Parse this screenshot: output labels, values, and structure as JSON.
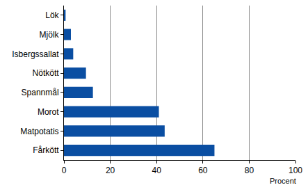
{
  "chart_data": {
    "type": "bar",
    "orientation": "horizontal",
    "categories": [
      "Lök",
      "Mjölk",
      "Isbergssallat",
      "Nötkött",
      "Spannmål",
      "Morot",
      "Matpotatis",
      "Fårkött"
    ],
    "values": [
      0.7,
      3,
      4,
      9.5,
      12.5,
      41,
      43.5,
      65
    ],
    "color": "#0a4ea2",
    "xlabel": "Procent",
    "xlim": [
      0,
      100
    ],
    "xticks": [
      0,
      20,
      40,
      60,
      80,
      100
    ],
    "grid": true
  }
}
